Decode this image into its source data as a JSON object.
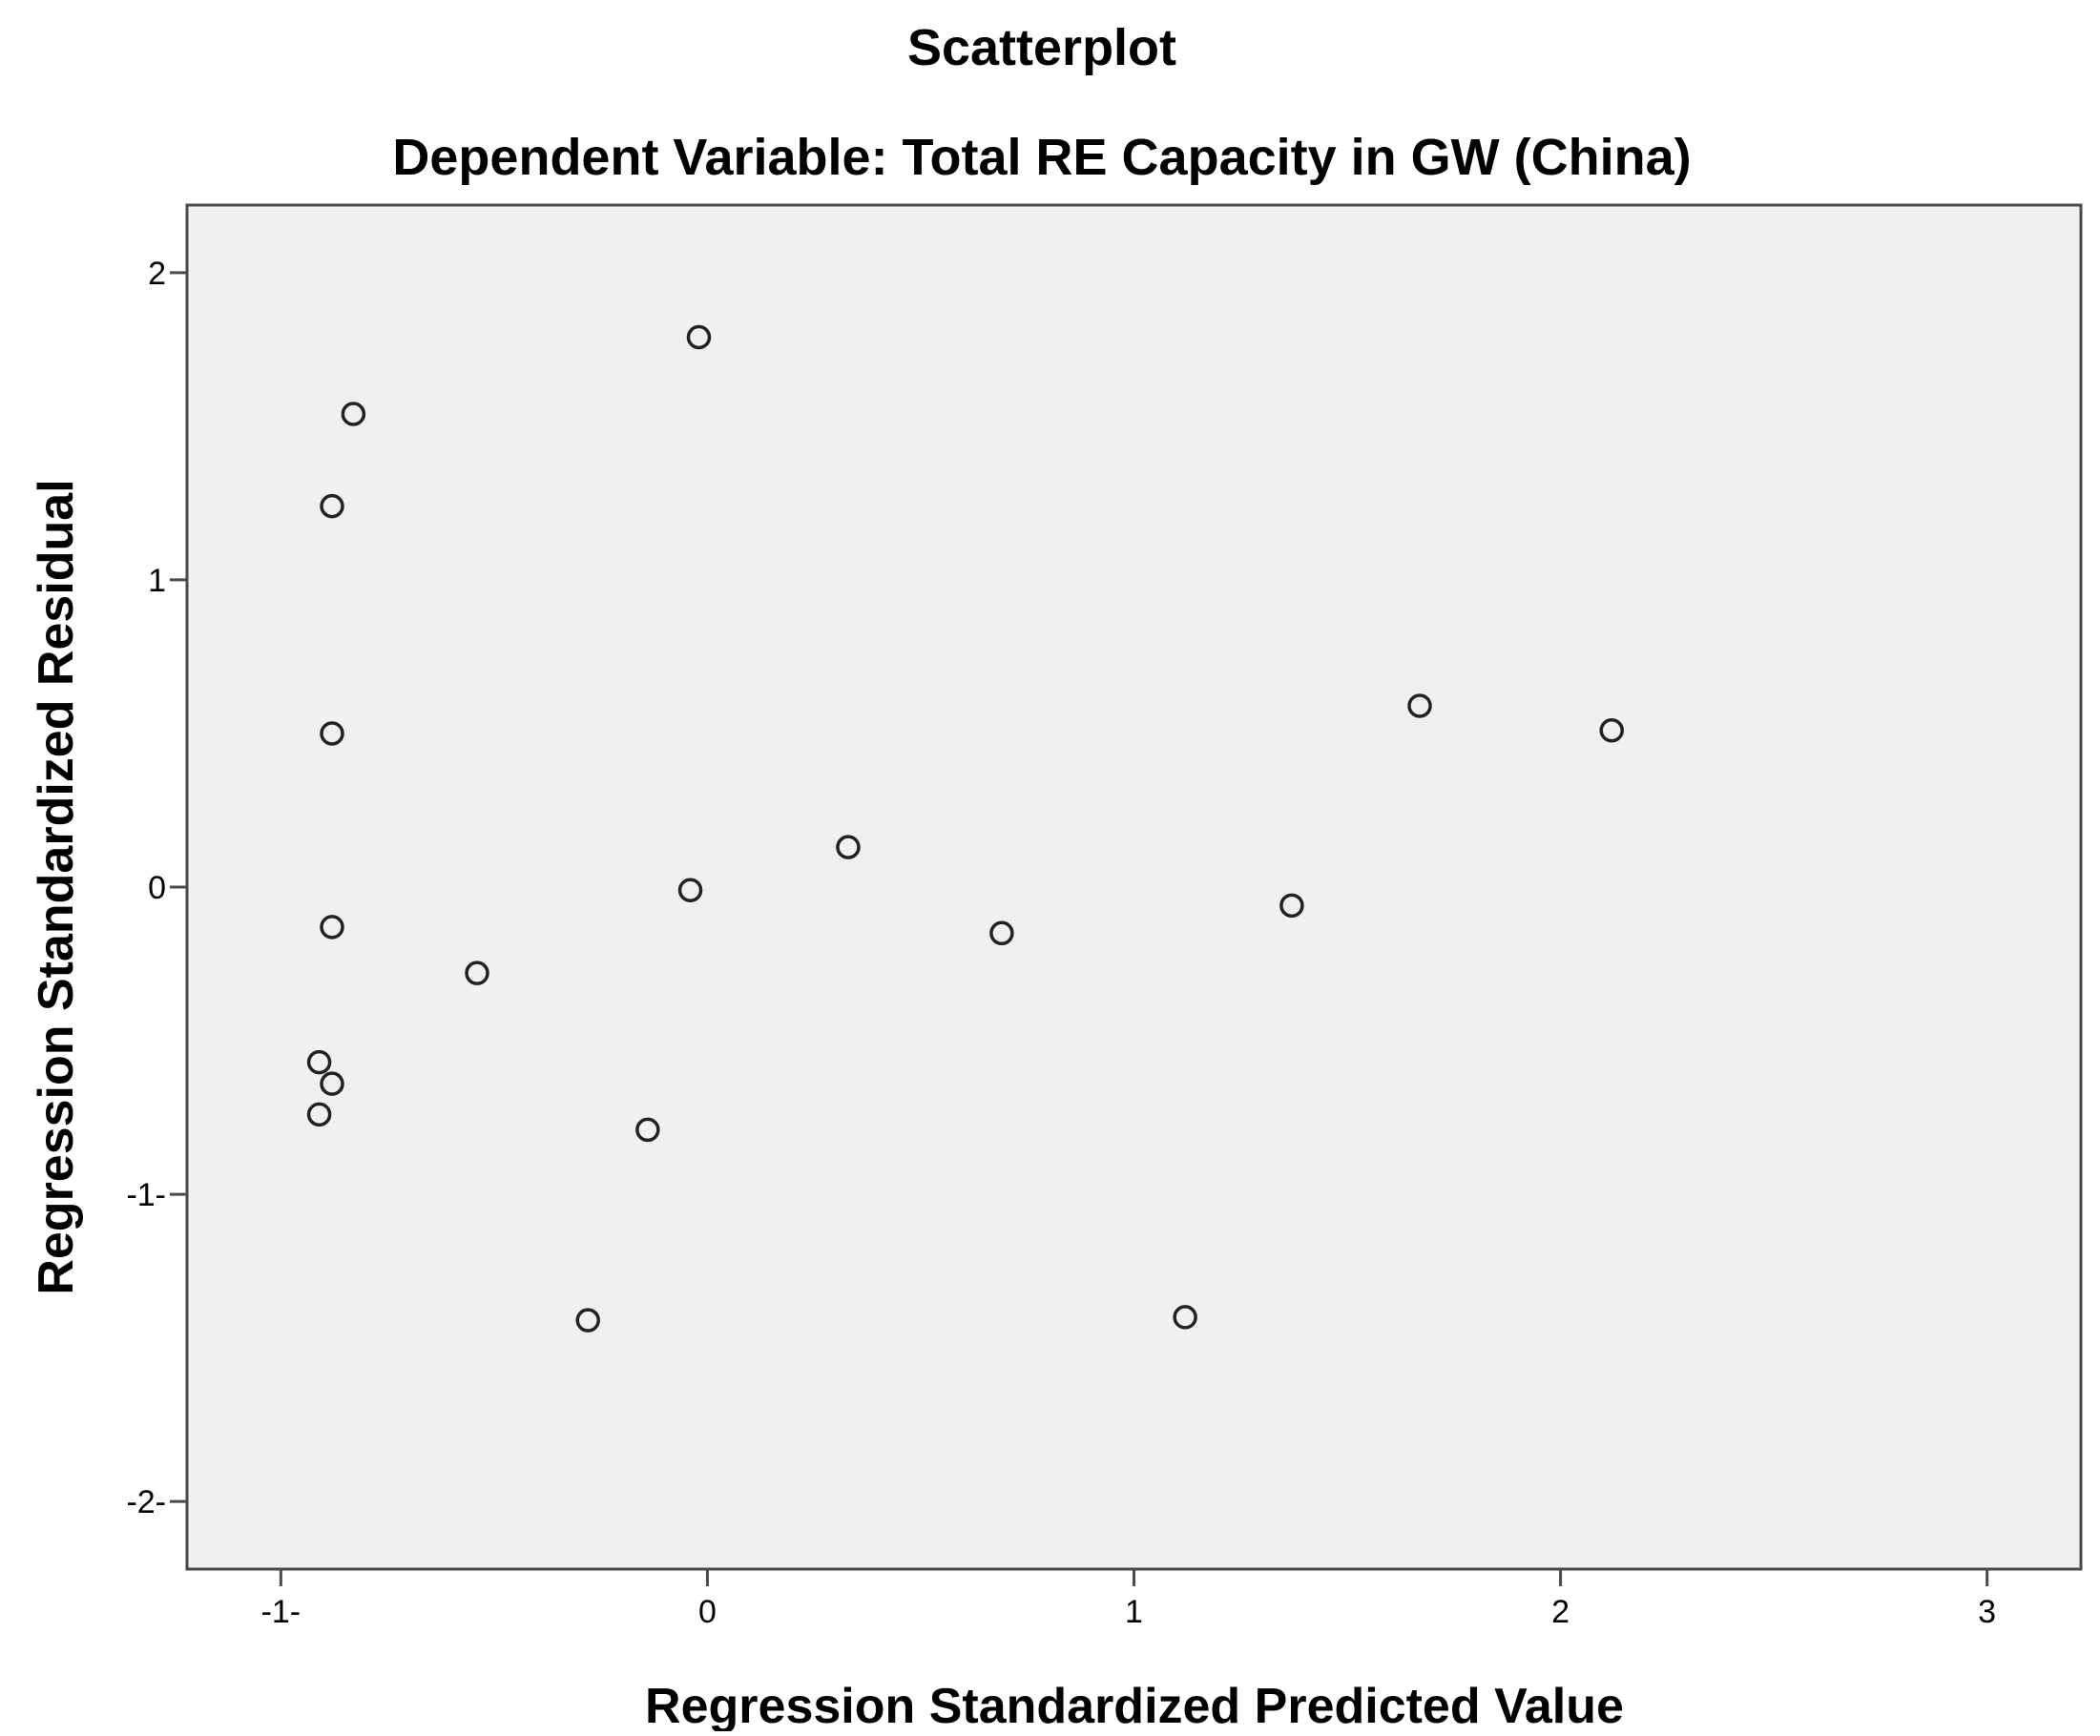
{
  "chart_data": {
    "type": "scatter",
    "title": "Scatterplot",
    "subtitle": "Dependent Variable: Total RE Capacity in GW (China)",
    "xlabel": "Regression Standardized Predicted Value",
    "ylabel": "Regression Standardized Residual",
    "xlim": [
      -1.22,
      3.22
    ],
    "ylim": [
      -2.22,
      2.22
    ],
    "x_ticks": [
      -1,
      0,
      1,
      2,
      3
    ],
    "y_ticks": [
      -2,
      -1,
      0,
      1,
      2
    ],
    "x_tick_labels": [
      "-1-",
      "0",
      "1",
      "2",
      "3"
    ],
    "y_tick_labels": [
      "-2-",
      "-1-",
      "0",
      "1",
      "2"
    ],
    "grid": false,
    "legend": "none",
    "plot_background": "#f0f0f0",
    "marker": "open-circle",
    "series": [
      {
        "points": [
          {
            "x": -0.02,
            "y": 1.79
          },
          {
            "x": -0.83,
            "y": 1.54
          },
          {
            "x": -0.88,
            "y": 1.24
          },
          {
            "x": -0.88,
            "y": 0.5
          },
          {
            "x": -0.88,
            "y": -0.13
          },
          {
            "x": -0.54,
            "y": -0.28
          },
          {
            "x": -0.91,
            "y": -0.57
          },
          {
            "x": -0.88,
            "y": -0.64
          },
          {
            "x": -0.91,
            "y": -0.74
          },
          {
            "x": -0.14,
            "y": -0.79
          },
          {
            "x": -0.28,
            "y": -1.41
          },
          {
            "x": -0.04,
            "y": -0.01
          },
          {
            "x": 0.33,
            "y": 0.13
          },
          {
            "x": 0.69,
            "y": -0.15
          },
          {
            "x": 1.12,
            "y": -1.4
          },
          {
            "x": 1.37,
            "y": -0.06
          },
          {
            "x": 1.67,
            "y": 0.59
          },
          {
            "x": 2.12,
            "y": 0.51
          }
        ]
      }
    ]
  }
}
